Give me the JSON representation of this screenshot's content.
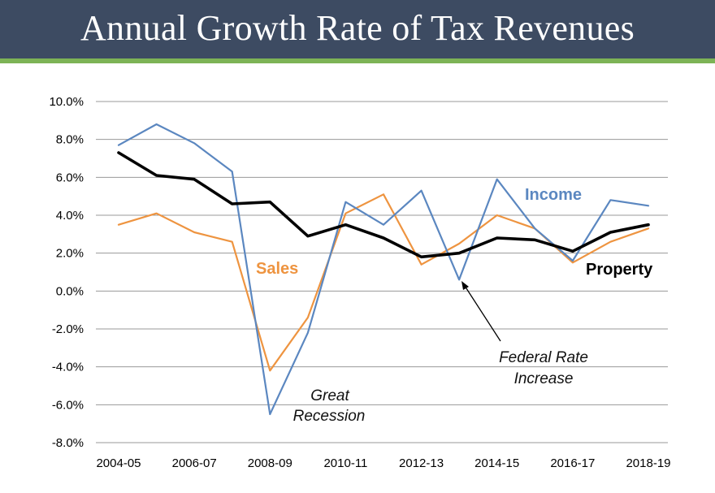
{
  "header": {
    "title": "Annual Growth Rate of Tax Revenues"
  },
  "colors": {
    "header_bg": "#3d4b62",
    "accent": "#7db356",
    "income": "#5b87c0",
    "sales": "#ee9440",
    "property": "#000000"
  },
  "chart_data": {
    "type": "line",
    "title": "Annual Growth Rate of Tax Revenues",
    "xlabel": "",
    "ylabel": "",
    "ylim": [
      -8.0,
      10.0
    ],
    "y_ticks": [
      "10.0%",
      "8.0%",
      "6.0%",
      "4.0%",
      "2.0%",
      "0.0%",
      "-2.0%",
      "-4.0%",
      "-6.0%",
      "-8.0%"
    ],
    "x_tick_labels": [
      "2004-05",
      "2006-07",
      "2008-09",
      "2010-11",
      "2012-13",
      "2014-15",
      "2016-17",
      "2018-19"
    ],
    "categories": [
      "2004-05",
      "2005-06",
      "2006-07",
      "2007-08",
      "2008-09",
      "2009-10",
      "2010-11",
      "2011-12",
      "2012-13",
      "2013-14",
      "2014-15",
      "2015-16",
      "2016-17",
      "2017-18",
      "2018-19"
    ],
    "grid": true,
    "series": [
      {
        "name": "Income",
        "label": "Income",
        "color": "#5b87c0",
        "width": 2.2,
        "values": [
          7.7,
          8.8,
          7.8,
          6.3,
          -6.5,
          -2.2,
          4.7,
          3.5,
          5.3,
          0.6,
          5.9,
          3.3,
          1.6,
          4.8,
          4.5
        ]
      },
      {
        "name": "Sales",
        "label": "Sales",
        "color": "#ee9440",
        "width": 2.2,
        "values": [
          3.5,
          4.1,
          3.1,
          2.6,
          -4.2,
          -1.4,
          4.1,
          5.1,
          1.4,
          2.5,
          4.0,
          3.3,
          1.5,
          2.6,
          3.3
        ]
      },
      {
        "name": "Property",
        "label": "Property",
        "color": "#000000",
        "width": 3.6,
        "values": [
          7.3,
          6.1,
          5.9,
          4.6,
          4.7,
          2.9,
          3.5,
          2.8,
          1.8,
          2.0,
          2.8,
          2.7,
          2.1,
          3.1,
          3.5
        ]
      }
    ],
    "annotations": [
      {
        "lines": [
          "Great",
          "Recession"
        ]
      },
      {
        "lines": [
          "Federal Rate",
          "Increase"
        ]
      }
    ]
  }
}
